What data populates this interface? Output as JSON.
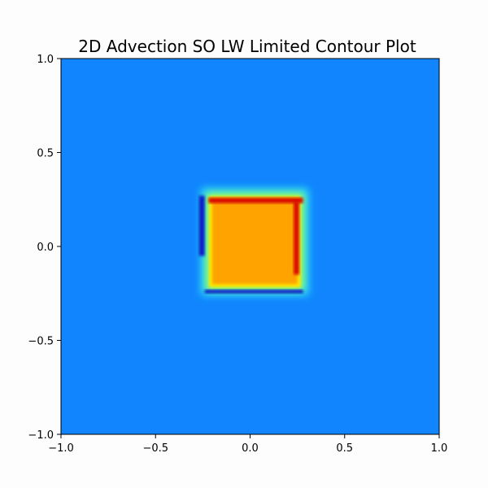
{
  "chart_data": {
    "type": "heatmap",
    "title": "2D Advection SO LW Limited Contour Plot",
    "xlabel": "",
    "ylabel": "",
    "xlim": [
      -1.0,
      1.0
    ],
    "ylim": [
      -1.0,
      1.0
    ],
    "x_ticks": [
      {
        "value": -1.0,
        "label": "−1.0"
      },
      {
        "value": -0.5,
        "label": "−0.5"
      },
      {
        "value": 0.0,
        "label": "0.0"
      },
      {
        "value": 0.5,
        "label": "0.5"
      },
      {
        "value": 1.0,
        "label": "1.0"
      }
    ],
    "y_ticks": [
      {
        "value": -1.0,
        "label": "−1.0"
      },
      {
        "value": -0.5,
        "label": "−0.5"
      },
      {
        "value": 0.0,
        "label": "0.0"
      },
      {
        "value": 0.5,
        "label": "0.5"
      },
      {
        "value": 1.0,
        "label": "1.0"
      }
    ],
    "grid": false,
    "colormap": "jet",
    "background_level": 0.0,
    "plateau": {
      "x": [
        -0.2,
        0.25
      ],
      "y": [
        -0.2,
        0.25
      ],
      "level": 1.0
    },
    "top_overshoot": {
      "x": [
        -0.22,
        0.28
      ],
      "y": [
        0.23,
        0.26
      ],
      "level": 1.15
    },
    "right_overshoot": {
      "x": [
        0.23,
        0.26
      ],
      "y": [
        -0.15,
        0.24
      ],
      "level": 1.08
    },
    "left_undershoot": {
      "x": [
        -0.27,
        -0.24
      ],
      "y": [
        -0.05,
        0.27
      ],
      "level": -0.12
    },
    "bottom_undershoot": {
      "x": [
        -0.24,
        0.28
      ],
      "y": [
        -0.25,
        -0.23
      ],
      "level": -0.18
    },
    "colors": {
      "background": "#1185fd",
      "plateau": "#ffa300",
      "overshoot": "#d90c00",
      "undershoot": "#0a1fc8"
    }
  }
}
